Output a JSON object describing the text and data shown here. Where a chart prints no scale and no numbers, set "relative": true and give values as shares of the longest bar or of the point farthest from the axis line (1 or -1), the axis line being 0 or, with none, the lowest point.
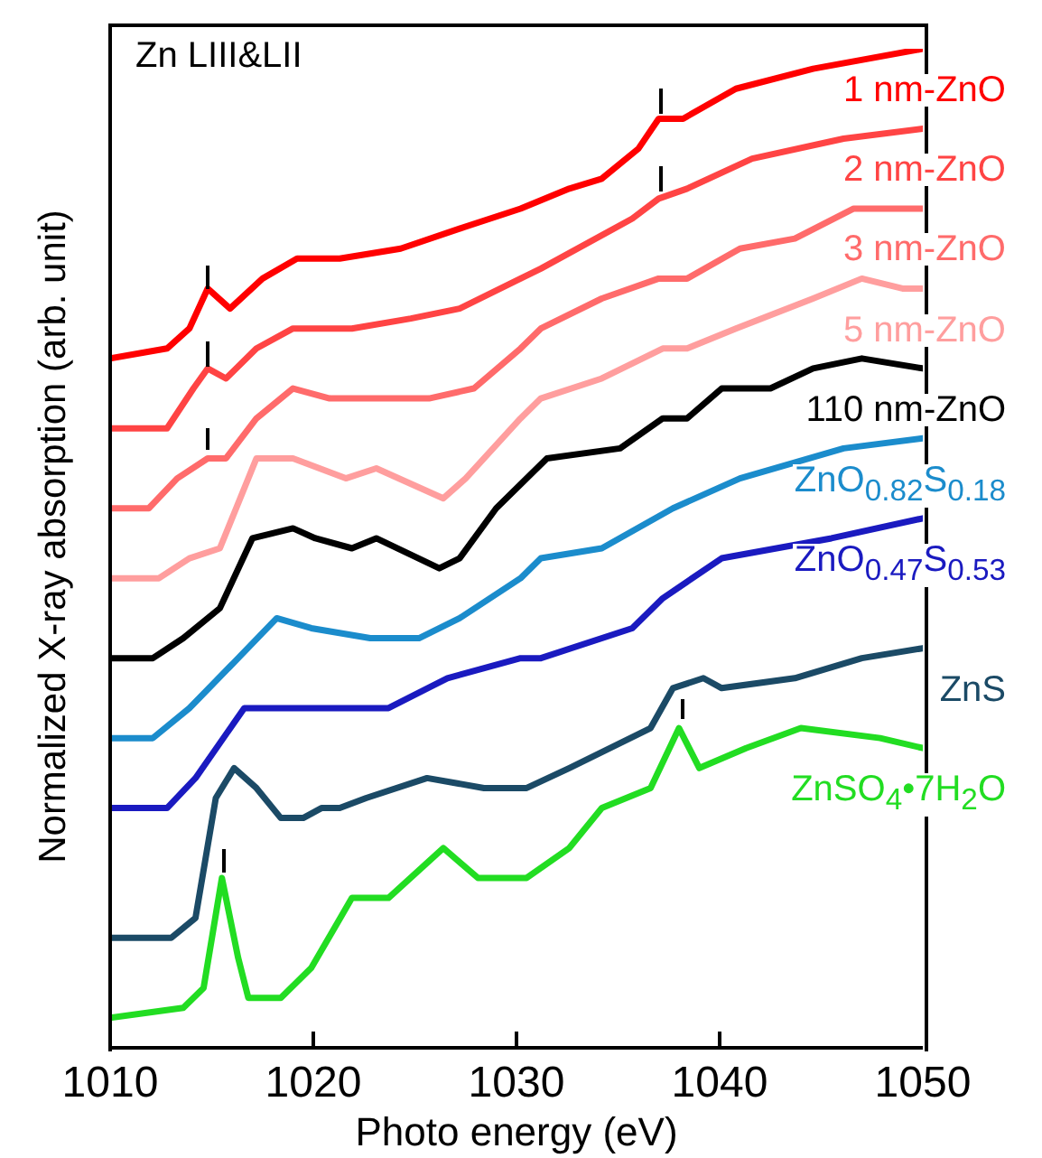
{
  "chart_data": {
    "type": "line",
    "title": "Zn LIII&LII",
    "xlabel": "Photo energy (eV)",
    "ylabel": "Normalized X-ray absorption (arb. unit)",
    "xlim": [
      1010,
      1050
    ],
    "xticks": [
      1010,
      1020,
      1030,
      1040,
      1050
    ],
    "relative": true,
    "grid": false,
    "legend": false,
    "marker": "none",
    "line_style": "solid",
    "series": [
      {
        "name": "1 nm-ZnO",
        "color": "#ff0000",
        "x": [
          1010,
          1012.8,
          1013.9,
          1014.8,
          1015.9,
          1017.5,
          1019.2,
          1021.3,
          1024.3,
          1027.2,
          1030.2,
          1032.6,
          1034.2,
          1036,
          1037,
          1038.2,
          1040.8,
          1044.6,
          1050
        ],
        "values": [
          0.69,
          0.7,
          0.72,
          0.76,
          0.74,
          0.77,
          0.79,
          0.79,
          0.8,
          0.82,
          0.84,
          0.86,
          0.87,
          0.9,
          0.93,
          0.93,
          0.96,
          0.98,
          1
        ]
      },
      {
        "name": "2 nm-ZnO",
        "color": "#ff4444",
        "x": [
          1010,
          1012.8,
          1014.1,
          1014.8,
          1015.7,
          1017.2,
          1019,
          1021.9,
          1024.8,
          1027.2,
          1030.2,
          1031.2,
          1035.7,
          1037,
          1038.4,
          1041.6,
          1046.1,
          1050
        ],
        "values": [
          0.62,
          0.62,
          0.66,
          0.68,
          0.67,
          0.7,
          0.72,
          0.72,
          0.73,
          0.74,
          0.77,
          0.78,
          0.83,
          0.85,
          0.86,
          0.89,
          0.91,
          0.92
        ]
      },
      {
        "name": "3 nm-ZnO",
        "color": "#ff6b6b",
        "x": [
          1010,
          1011.9,
          1013.3,
          1014.8,
          1015.7,
          1017.2,
          1019,
          1020.8,
          1023.1,
          1025.7,
          1027.9,
          1030.2,
          1031.2,
          1034.2,
          1037,
          1038.4,
          1041,
          1043.7,
          1046.6,
          1050
        ],
        "values": [
          0.54,
          0.54,
          0.57,
          0.59,
          0.59,
          0.63,
          0.66,
          0.65,
          0.65,
          0.65,
          0.66,
          0.7,
          0.72,
          0.75,
          0.77,
          0.77,
          0.8,
          0.81,
          0.84,
          0.84
        ]
      },
      {
        "name": "5 nm-ZnO",
        "color": "#ff9e9e",
        "x": [
          1010,
          1012.4,
          1013.9,
          1015.4,
          1017.2,
          1019,
          1021.6,
          1023.1,
          1026.4,
          1027.5,
          1030.2,
          1031.2,
          1034.2,
          1037.2,
          1038.4,
          1040.8,
          1044.6,
          1047,
          1049,
          1050
        ],
        "values": [
          0.47,
          0.47,
          0.49,
          0.5,
          0.59,
          0.59,
          0.57,
          0.58,
          0.55,
          0.57,
          0.63,
          0.65,
          0.67,
          0.7,
          0.7,
          0.72,
          0.75,
          0.77,
          0.76,
          0.76
        ]
      },
      {
        "name": "110 nm-ZnO",
        "color": "#000000",
        "x": [
          1010,
          1012.1,
          1013.6,
          1015.4,
          1017,
          1019,
          1020.1,
          1021.9,
          1023.1,
          1026.2,
          1027.2,
          1029,
          1031.5,
          1035.1,
          1037.2,
          1038.4,
          1040.1,
          1042.5,
          1044.6,
          1047,
          1050
        ],
        "values": [
          0.39,
          0.39,
          0.41,
          0.44,
          0.51,
          0.52,
          0.51,
          0.5,
          0.51,
          0.48,
          0.49,
          0.54,
          0.59,
          0.6,
          0.63,
          0.63,
          0.66,
          0.66,
          0.68,
          0.69,
          0.68
        ]
      },
      {
        "name": "ZnO$_{0.82}$S$_{0.18}$",
        "color": "#1b8ccc",
        "x": [
          1010,
          1012.1,
          1013.9,
          1016.3,
          1018.2,
          1019.9,
          1022.8,
          1025.2,
          1027.2,
          1030.2,
          1031.2,
          1034.2,
          1037.7,
          1041,
          1046.1,
          1050
        ],
        "values": [
          0.31,
          0.31,
          0.34,
          0.39,
          0.43,
          0.42,
          0.41,
          0.41,
          0.43,
          0.47,
          0.49,
          0.5,
          0.54,
          0.57,
          0.6,
          0.61
        ]
      },
      {
        "name": "ZnO$_{0.47}$S$_{0.53}$",
        "color": "#1a1ac0",
        "x": [
          1010,
          1012.8,
          1014.2,
          1016.6,
          1018.1,
          1021.3,
          1023.7,
          1026.6,
          1030.2,
          1031.2,
          1035.7,
          1037.2,
          1040.1,
          1045.5,
          1050
        ],
        "values": [
          0.24,
          0.24,
          0.27,
          0.34,
          0.34,
          0.34,
          0.34,
          0.37,
          0.39,
          0.39,
          0.42,
          0.45,
          0.49,
          0.51,
          0.53
        ]
      },
      {
        "name": "ZnS",
        "color": "#1b4a66",
        "x": [
          1010,
          1013,
          1014.2,
          1015.2,
          1016.1,
          1017.2,
          1018.4,
          1019.5,
          1020.4,
          1021.3,
          1022.6,
          1025.6,
          1028.4,
          1030.5,
          1032.6,
          1036.6,
          1037.7,
          1039.2,
          1040.1,
          1043.7,
          1047,
          1050
        ],
        "values": [
          0.11,
          0.11,
          0.13,
          0.25,
          0.28,
          0.26,
          0.23,
          0.23,
          0.24,
          0.24,
          0.25,
          0.27,
          0.26,
          0.26,
          0.28,
          0.32,
          0.36,
          0.37,
          0.36,
          0.37,
          0.39,
          0.4
        ]
      },
      {
        "name": "ZnSO$_{4}$•7H$_{2}$O",
        "color": "#22dd22",
        "x": [
          1010,
          1013.6,
          1014.6,
          1015.5,
          1016.3,
          1016.8,
          1018.4,
          1019.9,
          1021.9,
          1023.7,
          1026.4,
          1028.1,
          1030.5,
          1032.6,
          1034.2,
          1036.6,
          1038,
          1039,
          1041.3,
          1044,
          1047.9,
          1050
        ],
        "values": [
          0.03,
          0.04,
          0.06,
          0.17,
          0.09,
          0.05,
          0.05,
          0.08,
          0.15,
          0.15,
          0.2,
          0.17,
          0.17,
          0.2,
          0.24,
          0.26,
          0.32,
          0.28,
          0.3,
          0.32,
          0.31,
          0.3
        ]
      }
    ]
  }
}
